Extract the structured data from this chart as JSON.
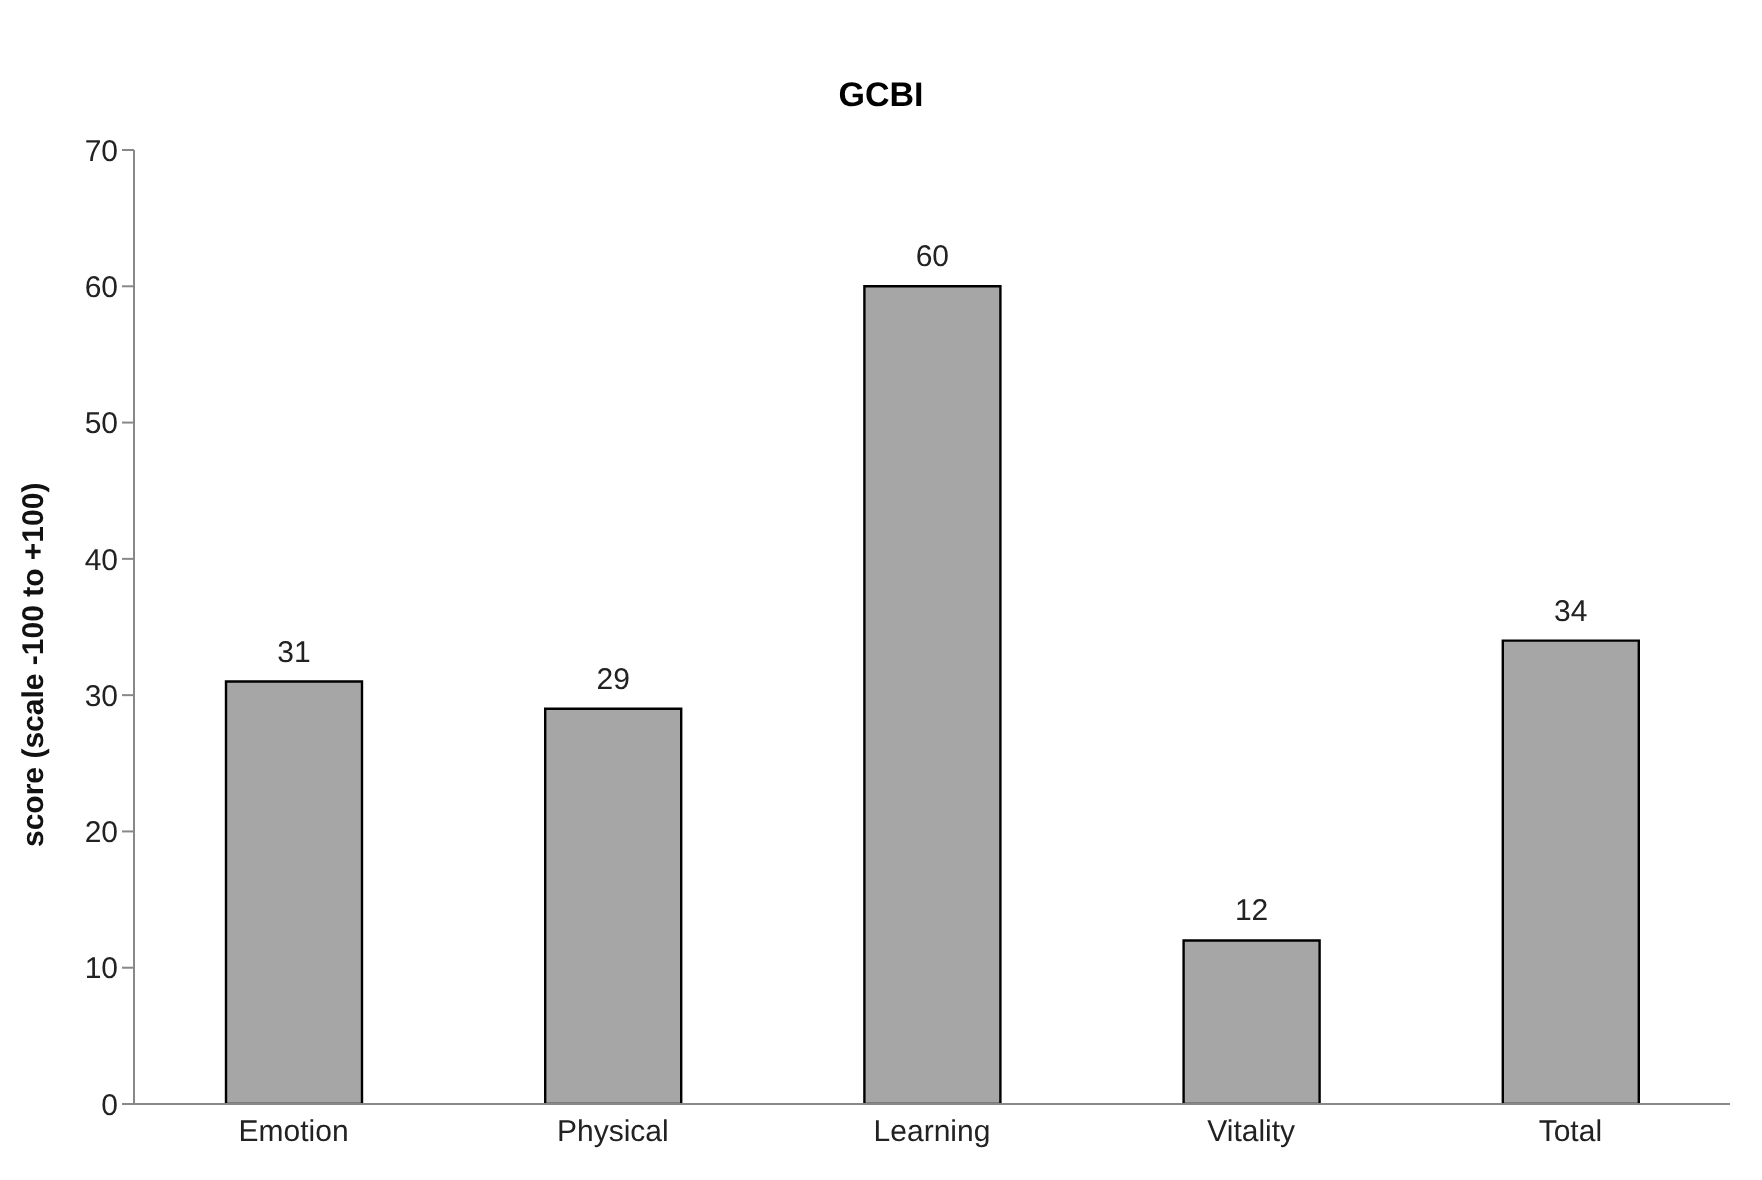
{
  "chart_data": {
    "type": "bar",
    "title": "GCBI",
    "ylabel": "score (scale -100 to +100)",
    "categories": [
      "Emotion",
      "Physical",
      "Learning",
      "Vitality",
      "Total"
    ],
    "values": [
      31,
      29,
      60,
      12,
      34
    ],
    "color": "#a6a6a6",
    "ylim": [
      0,
      70
    ],
    "yticks": [
      0,
      10,
      20,
      30,
      40,
      50,
      60,
      70
    ],
    "data_labels": true,
    "grid": false
  }
}
